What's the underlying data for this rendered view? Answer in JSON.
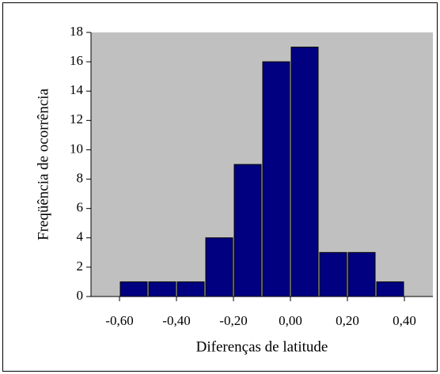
{
  "chart_data": {
    "type": "histogram",
    "x_label": "Diferenças de latitude",
    "y_label": "Freqüência de ocorrência",
    "bins": [
      -0.6,
      -0.5,
      -0.4,
      -0.3,
      -0.2,
      -0.1,
      0,
      0.1,
      0.2,
      0.3,
      0.4
    ],
    "values": [
      1,
      1,
      1,
      4,
      9,
      16,
      17,
      3,
      3,
      1
    ],
    "color": "#000080",
    "background": "#c0c0c0",
    "xlim": [
      -0.7,
      0.5
    ],
    "xticks": [
      {
        "value": -0.6,
        "label": "-0,60"
      },
      {
        "value": -0.4,
        "label": "-0,40"
      },
      {
        "value": -0.2,
        "label": "-0,20"
      },
      {
        "value": 0,
        "label": "0,00"
      },
      {
        "value": 0.2,
        "label": "0,20"
      },
      {
        "value": 0.4,
        "label": "0,40"
      }
    ],
    "ylim": [
      0,
      18
    ],
    "yticks": [
      0,
      2,
      4,
      6,
      8,
      10,
      12,
      14,
      16,
      18
    ]
  }
}
